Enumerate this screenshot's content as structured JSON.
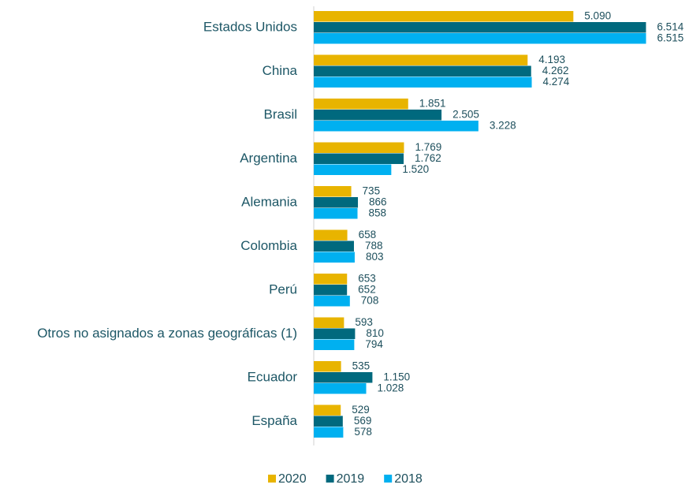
{
  "chart_data": {
    "type": "bar",
    "orientation": "horizontal",
    "categories": [
      "Estados Unidos",
      "China",
      "Brasil",
      "Argentina",
      "Alemania",
      "Colombia",
      "Perú",
      "Otros no asignados a zonas geográficas (1)",
      "Ecuador",
      "España"
    ],
    "series": [
      {
        "name": "2020",
        "color": "#e8b400",
        "values": [
          5090,
          4193,
          1851,
          1769,
          735,
          658,
          653,
          593,
          535,
          529
        ],
        "value_labels": [
          "5.090",
          "4.193",
          "1.851",
          "1.769",
          "735",
          "658",
          "653",
          "593",
          "535",
          "529"
        ]
      },
      {
        "name": "2019",
        "color": "#00697e",
        "values": [
          6514,
          4262,
          2505,
          1762,
          866,
          788,
          652,
          810,
          1150,
          569
        ],
        "value_labels": [
          "6.514",
          "4.262",
          "2.505",
          "1.762",
          "866",
          "788",
          "652",
          "810",
          "1.150",
          "569"
        ]
      },
      {
        "name": "2018",
        "color": "#00b0f0",
        "values": [
          6515,
          4274,
          3228,
          1520,
          858,
          803,
          708,
          794,
          1028,
          578
        ],
        "value_labels": [
          "6.515",
          "4.274",
          "3.228",
          "1.520",
          "858",
          "803",
          "708",
          "794",
          "1.028",
          "578"
        ]
      }
    ],
    "xlim": [
      0,
      6600
    ],
    "legend": "bottom"
  }
}
